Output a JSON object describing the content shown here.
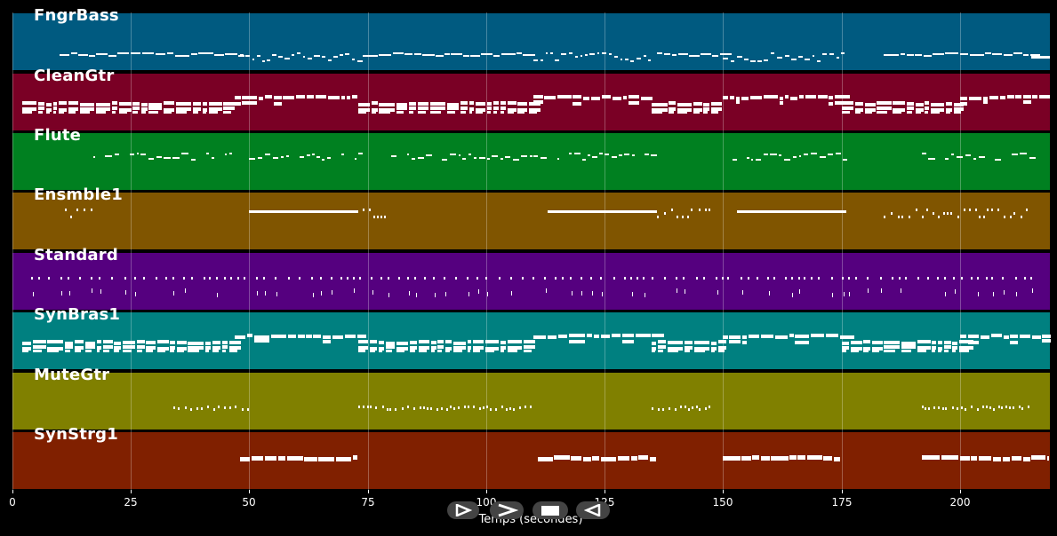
{
  "tracks": [
    {
      "name": "FngrBass",
      "color": "#005a80",
      "pattern": "bass"
    },
    {
      "name": "CleanGtr",
      "color": "#7a0025",
      "pattern": "chords"
    },
    {
      "name": "Flute",
      "color": "#008020",
      "pattern": "melody"
    },
    {
      "name": "Ensmble1",
      "color": "#805500",
      "pattern": "pads"
    },
    {
      "name": "Standard",
      "color": "#55007f",
      "pattern": "drums"
    },
    {
      "name": "SynBras1",
      "color": "#008080",
      "pattern": "chords"
    },
    {
      "name": "MuteGtr",
      "color": "#808000",
      "pattern": "sparse"
    },
    {
      "name": "SynStrg1",
      "color": "#802000",
      "pattern": "strings"
    }
  ],
  "axis": {
    "ticks": [
      "0",
      "25",
      "50",
      "75",
      "100",
      "125",
      "150",
      "175",
      "200"
    ],
    "tick_values": [
      0,
      25,
      50,
      75,
      100,
      125,
      150,
      175,
      200
    ],
    "x_range": [
      0,
      219
    ],
    "label": "Temps (secondes)"
  },
  "controls": [
    {
      "name": "play-forward-button",
      "icon": "play-forward-icon"
    },
    {
      "name": "fast-forward-button",
      "icon": "fast-forward-icon"
    },
    {
      "name": "stop-button",
      "icon": "stop-icon"
    },
    {
      "name": "rewind-button",
      "icon": "rewind-icon"
    }
  ]
}
